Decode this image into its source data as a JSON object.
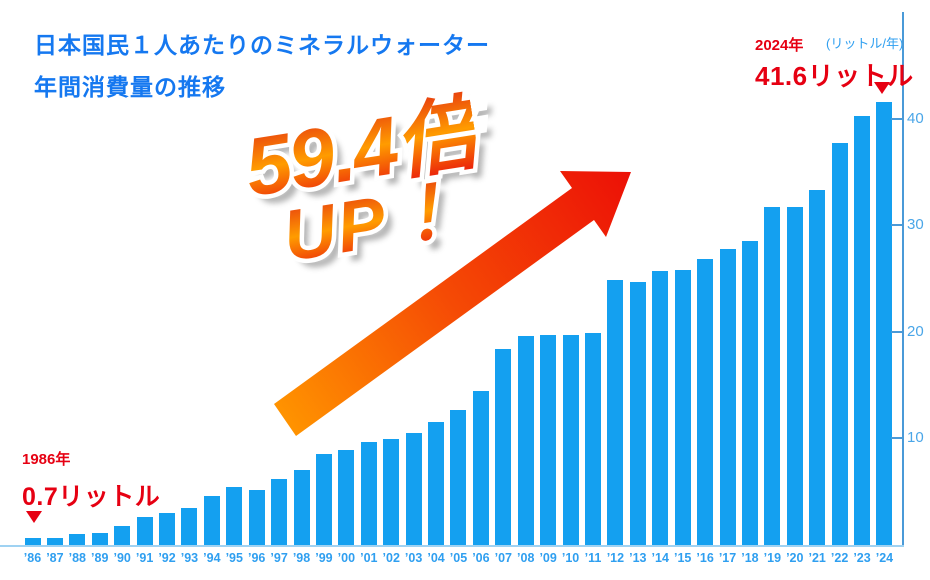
{
  "title": {
    "line1": "日本国民１人あたりのミネラルウォーター",
    "line2": "年間消費量の推移"
  },
  "axis_unit_label": "(リットル/年)",
  "growth_badge": {
    "line1": "59.4倍",
    "line2": "UP！"
  },
  "start_annotation": {
    "year": "1986年",
    "value": "0.7リットル"
  },
  "end_annotation": {
    "year": "2024年",
    "value": "41.6リットル"
  },
  "colors": {
    "bar": "#14a0f0",
    "title_text": "#1578f0",
    "x_label": "#2f9ff0",
    "y_label": "#4aa6e8",
    "axis_vertical": "#4a9ad8",
    "axis_horizontal": "#9fd2f2",
    "annotation_red": "#e60012",
    "arrow_start": "#ff9300",
    "arrow_mid": "#f54a05",
    "arrow_end": "#ec1006",
    "badge_gradient_top": "#e63610",
    "badge_gradient_mid": "#ff9c00",
    "badge_gradient_bottom": "#e8100c"
  },
  "chart_data": {
    "type": "bar",
    "title": "日本国民１人あたりのミネラルウォーター年間消費量の推移",
    "ylabel": "リットル/年",
    "categories": [
      "’86",
      "’87",
      "’88",
      "’89",
      "’90",
      "’91",
      "’92",
      "’93",
      "’94",
      "’95",
      "’96",
      "’97",
      "’98",
      "’99",
      "’00",
      "’01",
      "’02",
      "’03",
      "’04",
      "’05",
      "’06",
      "’07",
      "’08",
      "’09",
      "’10",
      "’11",
      "’12",
      "’13",
      "’14",
      "’15",
      "’16",
      "’17",
      "’18",
      "’19",
      "’20",
      "’21",
      "’22",
      "’23",
      "’24"
    ],
    "values": [
      0.7,
      0.7,
      1.0,
      1.1,
      1.8,
      2.6,
      3.0,
      3.5,
      4.6,
      5.4,
      5.2,
      6.2,
      7.0,
      8.5,
      8.9,
      9.7,
      9.9,
      10.5,
      11.5,
      12.7,
      14.4,
      18.4,
      19.6,
      19.7,
      19.7,
      19.9,
      24.9,
      24.7,
      25.7,
      25.8,
      26.8,
      27.8,
      28.5,
      31.7,
      31.7,
      33.3,
      37.7,
      40.2,
      41.6
    ],
    "yticks": [
      10,
      20,
      30,
      40
    ],
    "ylim": [
      0,
      42
    ],
    "grid": false,
    "legend": false,
    "annotations": [
      {
        "target": "1986",
        "text": "1986年 0.7リットル"
      },
      {
        "target": "2024",
        "text": "2024年 41.6リットル"
      },
      {
        "text": "59.4倍UP！"
      }
    ]
  }
}
